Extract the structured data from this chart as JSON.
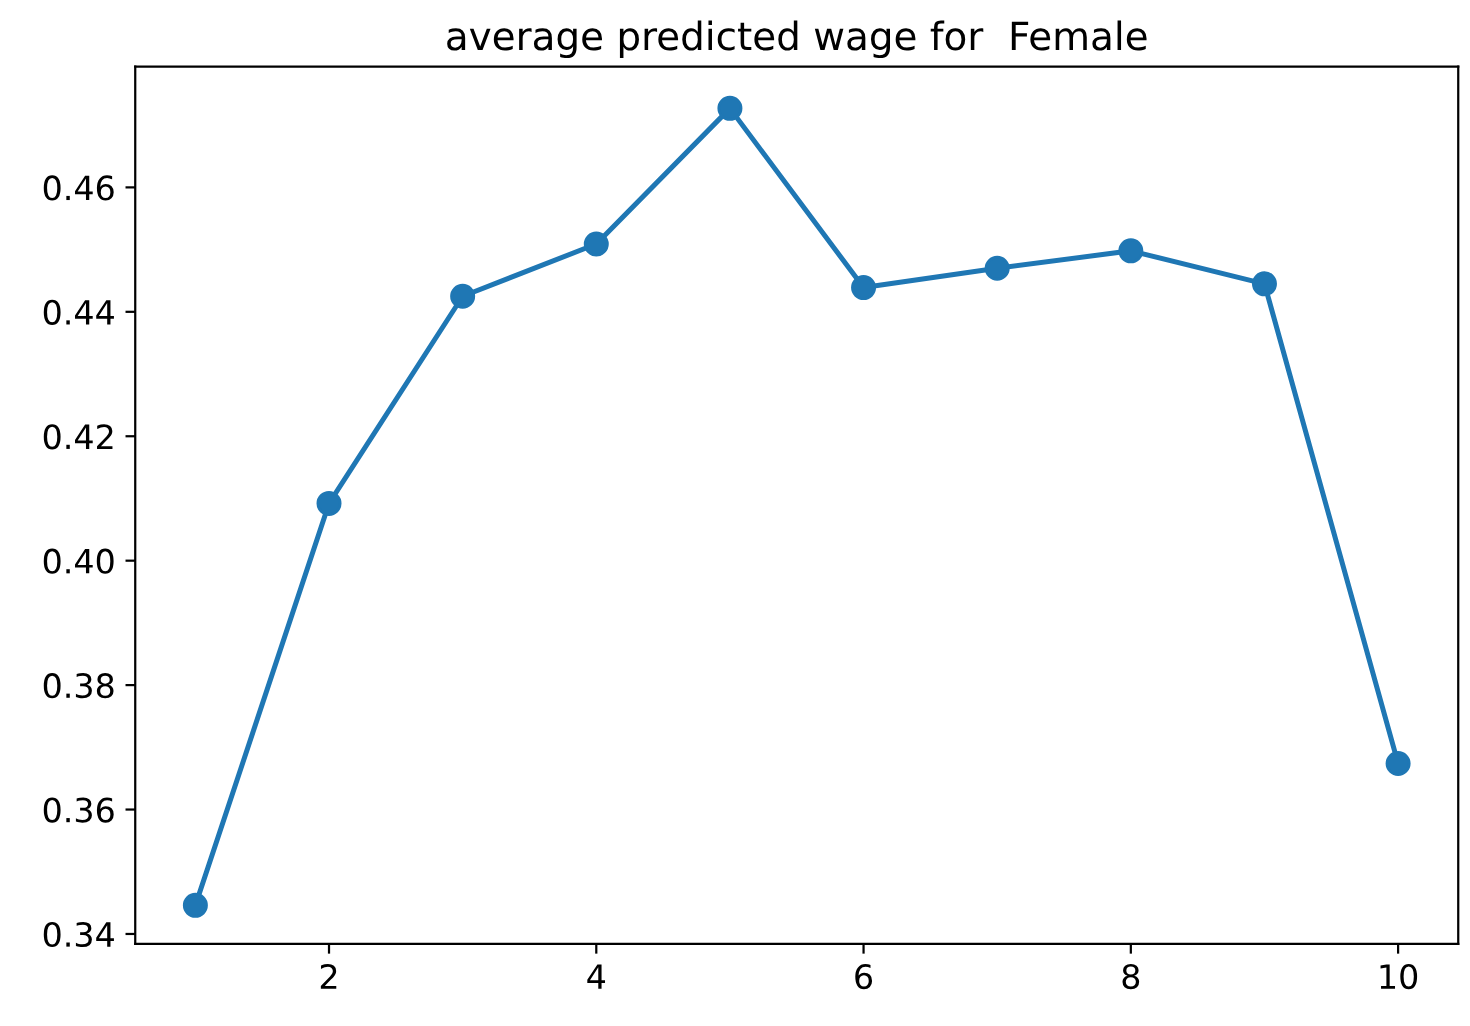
{
  "chart_data": {
    "type": "line",
    "title": "average predicted wage for  Female",
    "x": [
      1,
      2,
      3,
      4,
      5,
      6,
      7,
      8,
      9,
      10
    ],
    "series": [
      {
        "color": "#1f77b4",
        "values": [
          0.3446,
          0.4092,
          0.4425,
          0.4509,
          0.4727,
          0.4439,
          0.447,
          0.4498,
          0.4445,
          0.3674
        ]
      }
    ],
    "xlim": [
      0.55,
      10.45
    ],
    "xticks": [
      2,
      4,
      6,
      8,
      10
    ],
    "ylim": [
      0.3384,
      0.4794
    ],
    "yticks": [
      {
        "value": 0.34,
        "label": "0.34"
      },
      {
        "value": 0.36,
        "label": "0.36"
      },
      {
        "value": 0.38,
        "label": "0.38"
      },
      {
        "value": 0.4,
        "label": "0.40"
      },
      {
        "value": 0.42,
        "label": "0.42"
      },
      {
        "value": 0.44,
        "label": "0.44"
      },
      {
        "value": 0.46,
        "label": "0.46"
      }
    ],
    "marker": "circle",
    "line_style": "solid",
    "grid": false,
    "legend": false
  }
}
